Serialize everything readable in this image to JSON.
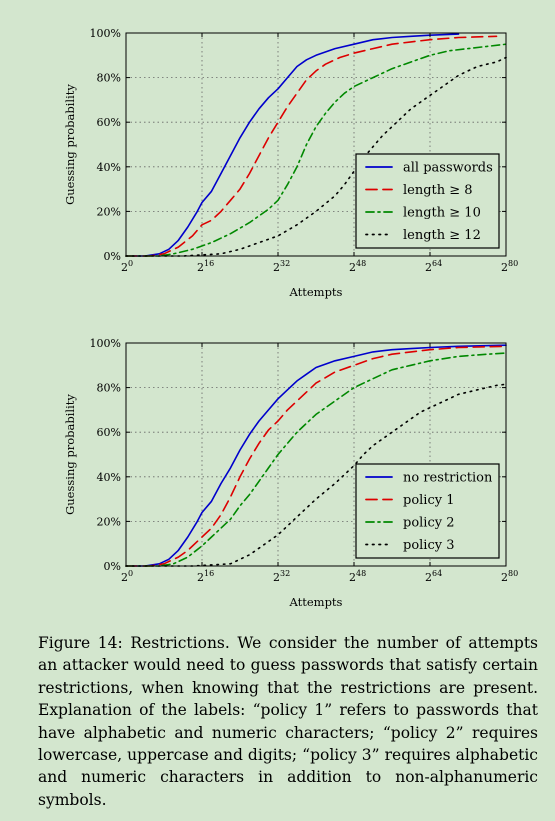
{
  "chart_data": [
    {
      "type": "line",
      "xlabel": "Attempts",
      "ylabel": "Guessing probability",
      "x_scale": "log2",
      "xlim": [
        0,
        80
      ],
      "ylim": [
        0,
        100
      ],
      "x_ticks": [
        0,
        16,
        32,
        48,
        64,
        80
      ],
      "x_tick_base": "2",
      "y_ticks": [
        0,
        20,
        40,
        60,
        80,
        100
      ],
      "y_tick_labels": [
        "0%",
        "20%",
        "40%",
        "60%",
        "80%",
        "100%"
      ],
      "grid": true,
      "legend_position": "lower-right",
      "series": [
        {
          "name": "all passwords",
          "color": "#0000cc",
          "dash": "solid",
          "points": [
            [
              0,
              0
            ],
            [
              4,
              0
            ],
            [
              7,
              1
            ],
            [
              9,
              3
            ],
            [
              11,
              7
            ],
            [
              13,
              13
            ],
            [
              15,
              20
            ],
            [
              16,
              24
            ],
            [
              18,
              29
            ],
            [
              20,
              37
            ],
            [
              22,
              45
            ],
            [
              24,
              53
            ],
            [
              26,
              60
            ],
            [
              28,
              66
            ],
            [
              30,
              71
            ],
            [
              32,
              75
            ],
            [
              34,
              80
            ],
            [
              36,
              85
            ],
            [
              38,
              88
            ],
            [
              40,
              90
            ],
            [
              44,
              93
            ],
            [
              48,
              95
            ],
            [
              52,
              97
            ],
            [
              56,
              98
            ],
            [
              60,
              98.5
            ],
            [
              64,
              99
            ],
            [
              70,
              99.5
            ]
          ]
        },
        {
          "name": "length ≥ 8",
          "color": "#dd0000",
          "dash": "dashed",
          "points": [
            [
              0,
              0
            ],
            [
              5,
              0
            ],
            [
              8,
              1
            ],
            [
              11,
              4
            ],
            [
              14,
              9
            ],
            [
              16,
              14
            ],
            [
              18,
              16
            ],
            [
              20,
              20
            ],
            [
              22,
              25
            ],
            [
              24,
              30
            ],
            [
              26,
              37
            ],
            [
              28,
              45
            ],
            [
              30,
              53
            ],
            [
              32,
              60
            ],
            [
              34,
              67
            ],
            [
              36,
              73
            ],
            [
              38,
              79
            ],
            [
              40,
              83
            ],
            [
              42,
              86
            ],
            [
              45,
              89
            ],
            [
              48,
              91
            ],
            [
              52,
              93
            ],
            [
              56,
              95
            ],
            [
              60,
              96
            ],
            [
              64,
              97
            ],
            [
              70,
              98
            ],
            [
              78,
              98.5
            ]
          ]
        },
        {
          "name": "length ≥ 10",
          "color": "#008800",
          "dash": "dashdot",
          "points": [
            [
              0,
              0
            ],
            [
              7,
              0
            ],
            [
              10,
              1
            ],
            [
              14,
              3
            ],
            [
              18,
              6
            ],
            [
              22,
              10
            ],
            [
              26,
              15
            ],
            [
              30,
              21
            ],
            [
              32,
              25
            ],
            [
              34,
              32
            ],
            [
              36,
              40
            ],
            [
              38,
              50
            ],
            [
              40,
              58
            ],
            [
              42,
              64
            ],
            [
              44,
              69
            ],
            [
              46,
              73
            ],
            [
              48,
              76
            ],
            [
              52,
              80
            ],
            [
              56,
              84
            ],
            [
              60,
              87
            ],
            [
              64,
              90
            ],
            [
              68,
              92
            ],
            [
              72,
              93
            ],
            [
              76,
              94
            ],
            [
              80,
              95
            ]
          ]
        },
        {
          "name": "length ≥ 12",
          "color": "#000000",
          "dash": "dotted",
          "points": [
            [
              0,
              0
            ],
            [
              12,
              0
            ],
            [
              16,
              0.5
            ],
            [
              20,
              1
            ],
            [
              24,
              3
            ],
            [
              28,
              6
            ],
            [
              32,
              9
            ],
            [
              36,
              14
            ],
            [
              40,
              20
            ],
            [
              44,
              27
            ],
            [
              46,
              32
            ],
            [
              48,
              38
            ],
            [
              50,
              44
            ],
            [
              52,
              49
            ],
            [
              54,
              54
            ],
            [
              56,
              58
            ],
            [
              58,
              62
            ],
            [
              60,
              66
            ],
            [
              62,
              69
            ],
            [
              64,
              72
            ],
            [
              66,
              75
            ],
            [
              68,
              78
            ],
            [
              70,
              81
            ],
            [
              72,
              83
            ],
            [
              74,
              85
            ],
            [
              76,
              86
            ],
            [
              78,
              87
            ],
            [
              80,
              89
            ]
          ]
        }
      ]
    },
    {
      "type": "line",
      "xlabel": "Attempts",
      "ylabel": "Guessing probability",
      "x_scale": "log2",
      "xlim": [
        0,
        80
      ],
      "ylim": [
        0,
        100
      ],
      "x_ticks": [
        0,
        16,
        32,
        48,
        64,
        80
      ],
      "x_tick_base": "2",
      "y_ticks": [
        0,
        20,
        40,
        60,
        80,
        100
      ],
      "y_tick_labels": [
        "0%",
        "20%",
        "40%",
        "60%",
        "80%",
        "100%"
      ],
      "grid": true,
      "legend_position": "lower-right",
      "series": [
        {
          "name": "no restriction",
          "color": "#0000cc",
          "dash": "solid",
          "points": [
            [
              0,
              0
            ],
            [
              4,
              0
            ],
            [
              7,
              1
            ],
            [
              9,
              3
            ],
            [
              11,
              7
            ],
            [
              13,
              13
            ],
            [
              15,
              20
            ],
            [
              16,
              24
            ],
            [
              18,
              29
            ],
            [
              20,
              37
            ],
            [
              22,
              44
            ],
            [
              24,
              52
            ],
            [
              26,
              59
            ],
            [
              28,
              65
            ],
            [
              30,
              70
            ],
            [
              32,
              75
            ],
            [
              34,
              79
            ],
            [
              36,
              83
            ],
            [
              38,
              86
            ],
            [
              40,
              89
            ],
            [
              44,
              92
            ],
            [
              48,
              94
            ],
            [
              52,
              96
            ],
            [
              56,
              97
            ],
            [
              60,
              97.5
            ],
            [
              64,
              98
            ],
            [
              70,
              98.5
            ],
            [
              80,
              99
            ]
          ]
        },
        {
          "name": "policy 1",
          "color": "#dd0000",
          "dash": "dashed",
          "points": [
            [
              0,
              0
            ],
            [
              5,
              0
            ],
            [
              8,
              1
            ],
            [
              11,
              4
            ],
            [
              13,
              7
            ],
            [
              16,
              13
            ],
            [
              18,
              17
            ],
            [
              20,
              23
            ],
            [
              22,
              31
            ],
            [
              24,
              40
            ],
            [
              26,
              48
            ],
            [
              28,
              55
            ],
            [
              30,
              61
            ],
            [
              32,
              65
            ],
            [
              34,
              70
            ],
            [
              36,
              74
            ],
            [
              38,
              78
            ],
            [
              40,
              82
            ],
            [
              44,
              87
            ],
            [
              48,
              90
            ],
            [
              52,
              93
            ],
            [
              56,
              95
            ],
            [
              60,
              96
            ],
            [
              64,
              97
            ],
            [
              70,
              98
            ],
            [
              80,
              98.5
            ]
          ]
        },
        {
          "name": "policy 2",
          "color": "#008800",
          "dash": "dashdot",
          "points": [
            [
              0,
              0
            ],
            [
              7,
              0
            ],
            [
              10,
              1
            ],
            [
              13,
              4
            ],
            [
              16,
              9
            ],
            [
              18,
              13
            ],
            [
              20,
              17
            ],
            [
              22,
              21
            ],
            [
              24,
              27
            ],
            [
              26,
              32
            ],
            [
              28,
              38
            ],
            [
              30,
              44
            ],
            [
              32,
              50
            ],
            [
              34,
              55
            ],
            [
              36,
              60
            ],
            [
              38,
              64
            ],
            [
              40,
              68
            ],
            [
              44,
              74
            ],
            [
              48,
              80
            ],
            [
              52,
              84
            ],
            [
              56,
              88
            ],
            [
              60,
              90
            ],
            [
              64,
              92
            ],
            [
              70,
              94
            ],
            [
              76,
              95
            ],
            [
              80,
              95.5
            ]
          ]
        },
        {
          "name": "policy 3",
          "color": "#000000",
          "dash": "dotted",
          "points": [
            [
              0,
              0
            ],
            [
              14,
              0
            ],
            [
              18,
              0.5
            ],
            [
              22,
              1
            ],
            [
              24,
              3
            ],
            [
              26,
              5
            ],
            [
              28,
              8
            ],
            [
              30,
              11
            ],
            [
              32,
              14
            ],
            [
              34,
              18
            ],
            [
              36,
              22
            ],
            [
              38,
              26
            ],
            [
              40,
              30
            ],
            [
              44,
              37
            ],
            [
              48,
              45
            ],
            [
              50,
              50
            ],
            [
              52,
              54
            ],
            [
              54,
              57
            ],
            [
              56,
              60
            ],
            [
              58,
              63
            ],
            [
              60,
              66
            ],
            [
              62,
              69
            ],
            [
              64,
              71
            ],
            [
              66,
              73
            ],
            [
              68,
              75
            ],
            [
              70,
              77
            ],
            [
              72,
              78
            ],
            [
              74,
              79
            ],
            [
              76,
              80
            ],
            [
              78,
              81
            ],
            [
              80,
              81.5
            ]
          ]
        }
      ]
    }
  ],
  "caption": {
    "text": "Figure 14: Restrictions. We consider the number of attempts an attacker would need to guess passwords that satisfy certain restrictions, when knowing that the restrictions are present. Explanation of the labels: “policy 1” refers to passwords that have alphabetic and numeric characters; “policy 2” requires lowercase, uppercase and digits; “policy 3” requires alphabetic and numeric characters in addition to non-alphanumeric symbols."
  }
}
